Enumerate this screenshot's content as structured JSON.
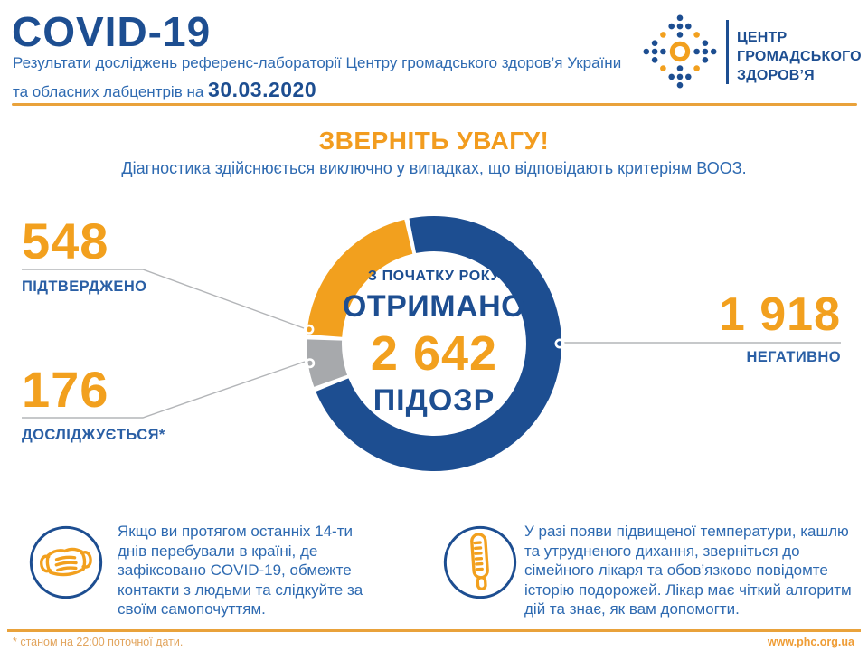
{
  "header": {
    "title": "COVID-19",
    "subtitle_line1": "Результати досліджень референс-лабораторії Центру громадського здоров’я України",
    "subtitle_line2_prefix": "та обласних лабцентрів на ",
    "date": "30.03.2020",
    "logo": {
      "org_name_lines": [
        "ЦЕНТР",
        "ГРОМАДСЬКОГО",
        "ЗДОРОВ’Я"
      ]
    }
  },
  "attention": {
    "title": "ЗВЕРНІТЬ УВАГУ!",
    "subtitle": "Діагностика здійснюється виключно у випадках, що відповідають критеріям ВООЗ."
  },
  "chart_data": {
    "type": "pie",
    "title_lines": [
      "З ПОЧАТКУ РОКУ",
      "ОТРИМАНО"
    ],
    "total_display": "2 642",
    "total_value": 2642,
    "unit_label": "ПІДОЗР",
    "slices": [
      {
        "name": "ПІДТВЕРДЖЕНО",
        "value": 548,
        "display": "548",
        "color": "#f2a01e"
      },
      {
        "name": "ДОСЛІДЖУЄТЬСЯ*",
        "value": 176,
        "display": "176",
        "color": "#a7a9ac"
      },
      {
        "name": "НЕГАТИВНО",
        "value": 1918,
        "display": "1 918",
        "color": "#1d4e91"
      }
    ],
    "legend_position": "callouts",
    "start_angle_deg": 273,
    "direction": "clockwise"
  },
  "info_boxes": [
    {
      "icon": "face-mask",
      "text": "Якщо ви протягом останніх 14-ти днів перебували в країні, де зафіксовано COVID-19, обмежте контакти з людьми та слідкуйте за своїм самопочуттям."
    },
    {
      "icon": "thermometer",
      "text": "У разі появи підвищеної температури, кашлю та утрудненого дихання, зверніться до сімейного лікаря та обов’язково повідомте історію подорожей. Лікар має чіткий алгоритм дій та знає, як вам допомогти."
    }
  ],
  "footer": {
    "note": "* станом на 22:00 поточної дати.",
    "website": "www.phc.org.ua"
  },
  "colors": {
    "navy": "#1d4e91",
    "body_blue": "#2e6ab1",
    "orange": "#f2a01e",
    "gray": "#a7a9ac",
    "divider_orange": "#e9a23b",
    "connector_gray": "#b3b5b8"
  }
}
